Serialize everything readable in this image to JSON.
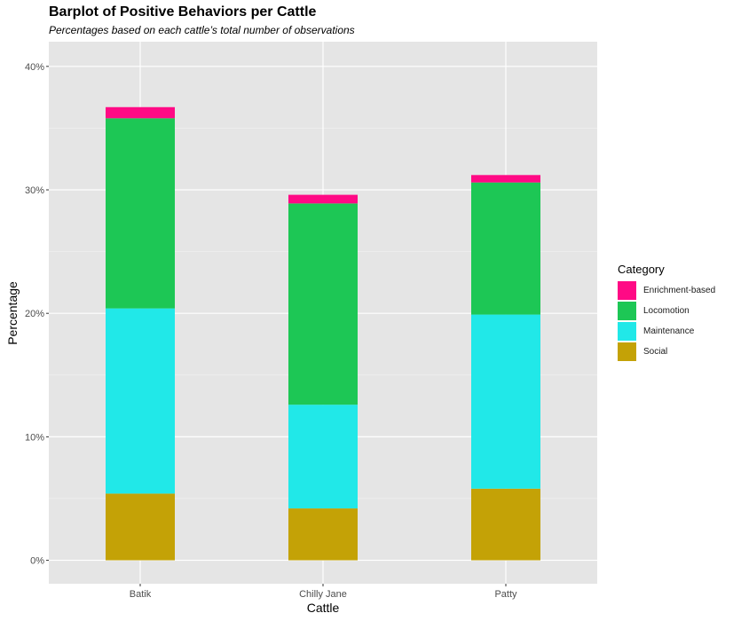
{
  "chart_data": {
    "type": "bar",
    "stacked": true,
    "title": "Barplot of Positive Behaviors per Cattle",
    "subtitle": "Percentages based on each cattle’s total number of observations",
    "xlabel": "Cattle",
    "ylabel": "Percentage",
    "categories": [
      "Batik",
      "Chilly Jane",
      "Patty"
    ],
    "ylim": [
      -1.9,
      42
    ],
    "yticks": [
      0,
      10,
      20,
      30,
      40
    ],
    "ytick_labels": [
      "0%",
      "10%",
      "20%",
      "30%",
      "40%"
    ],
    "grid": true,
    "legend_position": "right",
    "legend_title": "Category",
    "series": [
      {
        "name": "Social",
        "color": "#C4A206",
        "values": [
          5.4,
          4.2,
          5.8
        ]
      },
      {
        "name": "Maintenance",
        "color": "#21E8E8",
        "values": [
          15.0,
          8.4,
          14.1
        ]
      },
      {
        "name": "Locomotion",
        "color": "#1DC755",
        "values": [
          15.4,
          16.3,
          10.7
        ]
      },
      {
        "name": "Enrichment-based",
        "color": "#FF0A85",
        "values": [
          0.9,
          0.7,
          0.6
        ]
      }
    ],
    "legend_order": [
      "Enrichment-based",
      "Locomotion",
      "Maintenance",
      "Social"
    ]
  }
}
